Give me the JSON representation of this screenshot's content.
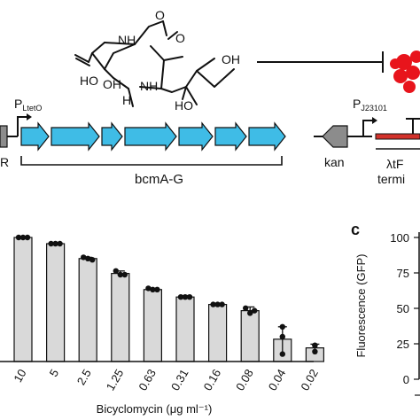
{
  "figure": {
    "panel_c_letter": "c",
    "diagram": {
      "promoter_left": {
        "main": "P",
        "sub": "LtetO"
      },
      "promoter_right": {
        "main": "P",
        "sub": "J23101"
      },
      "left_cut_label": "R",
      "operon_label": "bcmA-G",
      "kan_label": "kan",
      "terminator_line1": "λtF",
      "terminator_line2": "termi",
      "molecule_labels": {
        "oh1": "OH",
        "oh2": "OH",
        "ho1": "HO",
        "ho2": "HO",
        "nh1": "NH",
        "nh2": "NH",
        "o1": "O",
        "o2": "O",
        "h": "H"
      },
      "colors": {
        "gene_fill": "#3fbce6",
        "kan_fill": "#8c8c8c",
        "protein_fill": "#e8141c",
        "terminator_fill": "#d2312b"
      }
    },
    "panel_c": {
      "ylabel": "Fluorescence (GFP)",
      "yticks": [
        "100",
        "75",
        "50",
        "25",
        "0"
      ]
    }
  },
  "chart_data": {
    "type": "bar",
    "xlabel": "Bicyclomycin (μg ml⁻¹)",
    "categories": [
      "10",
      "5",
      "2.5",
      "1.25",
      "0.63",
      "0.31",
      "0.16",
      "0.08",
      "0.04",
      "0.02"
    ],
    "values": [
      100,
      95,
      83,
      71,
      58,
      52,
      46,
      41,
      18,
      11
    ],
    "replicates": [
      [
        100,
        100,
        100
      ],
      [
        95,
        95,
        95
      ],
      [
        84,
        83,
        82
      ],
      [
        73,
        70,
        70
      ],
      [
        59,
        58,
        58
      ],
      [
        52,
        52,
        52
      ],
      [
        46,
        46,
        46
      ],
      [
        43,
        39,
        41
      ],
      [
        28,
        20,
        6
      ],
      [
        13,
        8,
        13
      ]
    ],
    "error": [
      0,
      0,
      1,
      2,
      0,
      0,
      0,
      3,
      10,
      3
    ],
    "ylim": [
      0,
      115
    ],
    "bar_color": "#d9d9d9",
    "point_color": "#111111"
  }
}
